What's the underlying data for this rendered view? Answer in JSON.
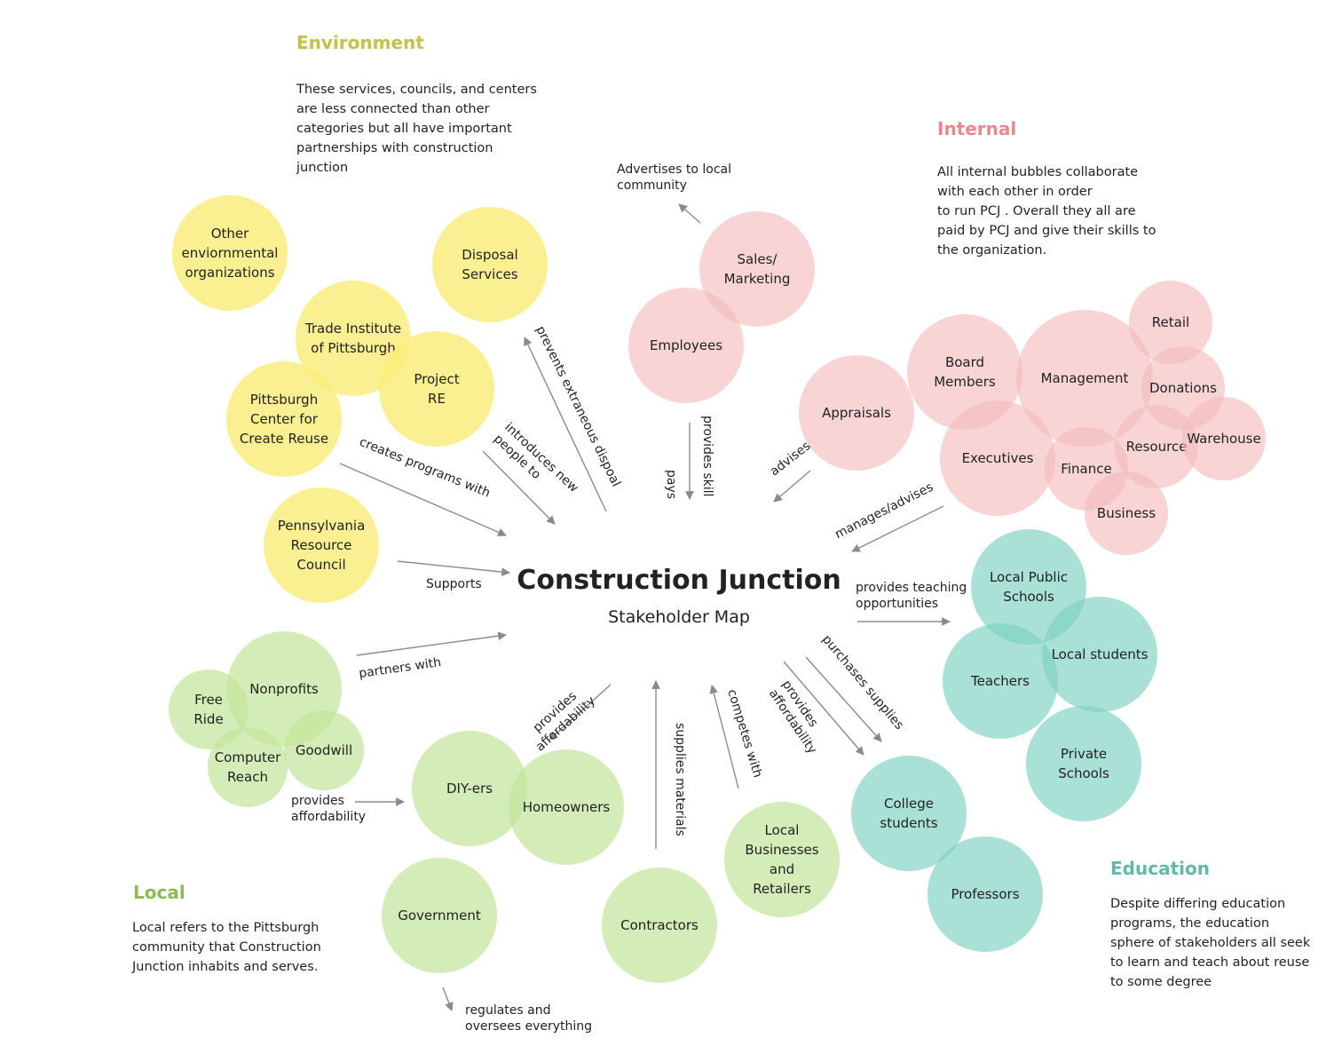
{
  "title": "Construction Junction",
  "subtitle": "Stakeholder Map",
  "colors": {
    "environment": "#f9ed7e",
    "internal": "#f4b9bc",
    "local": "#c3e59b",
    "education": "#7dd1c1",
    "environment_heading": "#c3c24a",
    "internal_heading": "#e8888c",
    "local_heading": "#8cba55",
    "education_heading": "#63b9a8",
    "arrow": "#8a8a8a"
  },
  "groups": {
    "environment": {
      "heading": "Environment",
      "description": [
        "These services, councils, and centers",
        "are less connected than other",
        "categories but all have important",
        "partnerships with construction",
        "junction"
      ]
    },
    "internal": {
      "heading": "Internal",
      "description": [
        "All internal bubbles collaborate",
        "with each other in order",
        "to run PCJ . Overall they all are",
        "paid by PCJ and give their skills to",
        "the organization."
      ]
    },
    "local": {
      "heading": "Local",
      "description": [
        "Local refers to the Pittsburgh",
        "community that Construction",
        "Junction inhabits and serves."
      ]
    },
    "education": {
      "heading": "Education",
      "description": [
        "Despite differing education",
        "programs, the education",
        "sphere of stakeholders all seek",
        "to learn and teach about reuse",
        "to some degree"
      ]
    }
  },
  "nodes": [
    {
      "id": "other-environmental-organizations",
      "group": "environment",
      "lines": [
        "Other",
        "enviornmental",
        "organizations"
      ]
    },
    {
      "id": "disposal-services",
      "group": "environment",
      "lines": [
        "Disposal",
        "Services"
      ]
    },
    {
      "id": "trade-institute",
      "group": "environment",
      "lines": [
        "Trade Institute",
        "of Pittsburgh"
      ]
    },
    {
      "id": "project-re",
      "group": "environment",
      "lines": [
        "Project",
        "RE"
      ]
    },
    {
      "id": "pittsburgh-center-creative-reuse",
      "group": "environment",
      "lines": [
        "Pittsburgh",
        "Center for",
        "Create Reuse"
      ]
    },
    {
      "id": "pennsylvania-resource-council",
      "group": "environment",
      "lines": [
        "Pennsylvania",
        "Resource",
        "Council"
      ]
    },
    {
      "id": "sales-marketing",
      "group": "internal",
      "lines": [
        "Sales/",
        "Marketing"
      ]
    },
    {
      "id": "employees",
      "group": "internal",
      "lines": [
        "Employees"
      ]
    },
    {
      "id": "appraisals",
      "group": "internal",
      "lines": [
        "Appraisals"
      ]
    },
    {
      "id": "board-members",
      "group": "internal",
      "lines": [
        "Board",
        "Members"
      ]
    },
    {
      "id": "management",
      "group": "internal",
      "lines": [
        "Management"
      ]
    },
    {
      "id": "retail",
      "group": "internal",
      "lines": [
        "Retail"
      ]
    },
    {
      "id": "donations",
      "group": "internal",
      "lines": [
        "Donations"
      ]
    },
    {
      "id": "executives",
      "group": "internal",
      "lines": [
        "Executives"
      ]
    },
    {
      "id": "finance",
      "group": "internal",
      "lines": [
        "Finance"
      ]
    },
    {
      "id": "resource",
      "group": "internal",
      "lines": [
        "Resource"
      ]
    },
    {
      "id": "warehouse",
      "group": "internal",
      "lines": [
        "Warehouse"
      ]
    },
    {
      "id": "business",
      "group": "internal",
      "lines": [
        "Business"
      ]
    },
    {
      "id": "local-public-schools",
      "group": "education",
      "lines": [
        "Local Public",
        "Schools"
      ]
    },
    {
      "id": "local-students",
      "group": "education",
      "lines": [
        "Local students"
      ]
    },
    {
      "id": "teachers",
      "group": "education",
      "lines": [
        "Teachers"
      ]
    },
    {
      "id": "private-schools",
      "group": "education",
      "lines": [
        "Private",
        "Schools"
      ]
    },
    {
      "id": "college-students",
      "group": "education",
      "lines": [
        "College",
        "students"
      ]
    },
    {
      "id": "professors",
      "group": "education",
      "lines": [
        "Professors"
      ]
    },
    {
      "id": "nonprofits",
      "group": "local",
      "lines": [
        "Nonprofits"
      ]
    },
    {
      "id": "free-ride",
      "group": "local",
      "lines": [
        "Free",
        "Ride"
      ]
    },
    {
      "id": "goodwill",
      "group": "local",
      "lines": [
        "Goodwill"
      ]
    },
    {
      "id": "computer-reach",
      "group": "local",
      "lines": [
        "Computer",
        "Reach"
      ]
    },
    {
      "id": "diy-ers",
      "group": "local",
      "lines": [
        "DIY-ers"
      ]
    },
    {
      "id": "homeowners",
      "group": "local",
      "lines": [
        "Homeowners"
      ]
    },
    {
      "id": "government",
      "group": "local",
      "lines": [
        "Government"
      ]
    },
    {
      "id": "contractors",
      "group": "local",
      "lines": [
        "Contractors"
      ]
    },
    {
      "id": "local-businesses",
      "group": "local",
      "lines": [
        "Local",
        "Businesses",
        "and",
        "Retailers"
      ]
    }
  ],
  "relationships": [
    {
      "id": "advertises",
      "lines": [
        "Advertises to local",
        "community"
      ]
    },
    {
      "id": "prevents-disposal",
      "lines": [
        "prevents extraneous dispoal"
      ]
    },
    {
      "id": "introduces",
      "lines": [
        "introduces new",
        "people to"
      ]
    },
    {
      "id": "creates-programs",
      "lines": [
        "creates programs with"
      ]
    },
    {
      "id": "supports",
      "lines": [
        "Supports"
      ]
    },
    {
      "id": "provides-skill",
      "lines": [
        "provides skill"
      ]
    },
    {
      "id": "pays",
      "lines": [
        "pays"
      ]
    },
    {
      "id": "advises",
      "lines": [
        "advises"
      ]
    },
    {
      "id": "manages-advises",
      "lines": [
        "manages/advises"
      ]
    },
    {
      "id": "provides-teaching",
      "lines": [
        "provides teaching",
        "opportunities"
      ]
    },
    {
      "id": "purchases-supplies",
      "lines": [
        "purchases supplies"
      ]
    },
    {
      "id": "provides-affordability-college",
      "lines": [
        "provides",
        "affordability"
      ]
    },
    {
      "id": "competes-with",
      "lines": [
        "competes with"
      ]
    },
    {
      "id": "supplies-materials",
      "lines": [
        "supplies materials"
      ]
    },
    {
      "id": "provides-affordability-diy",
      "lines": [
        "provides",
        "affordability"
      ]
    },
    {
      "id": "partners-with",
      "lines": [
        "partners with"
      ]
    },
    {
      "id": "provides-affordability-nonprofits",
      "lines": [
        "provides",
        "affordability"
      ]
    },
    {
      "id": "regulates",
      "lines": [
        "regulates and",
        "oversees everything"
      ]
    }
  ]
}
